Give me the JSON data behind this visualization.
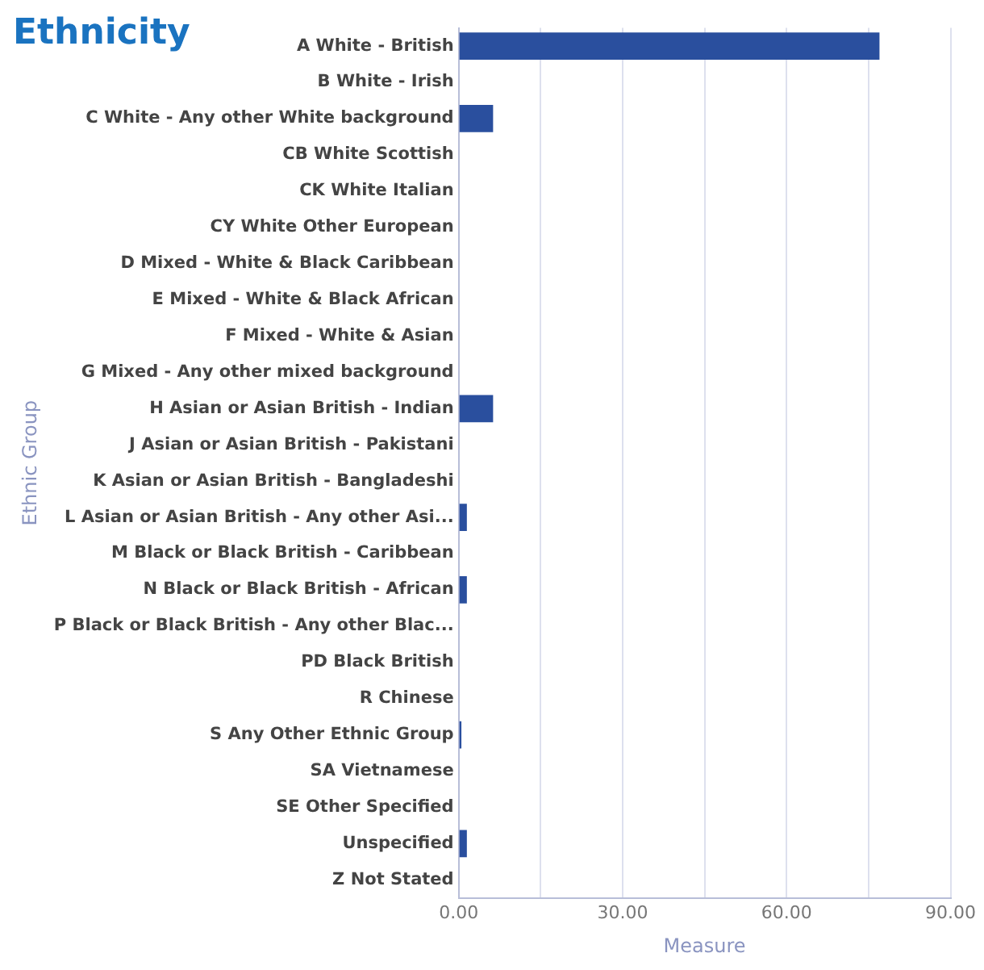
{
  "chart_data": {
    "type": "bar",
    "orientation": "horizontal",
    "title": "Ethnicity",
    "xlabel": "Measure",
    "ylabel": "Ethnic Group",
    "categories": [
      "A White - British",
      "B White - Irish",
      "C White - Any other White background",
      "CB White Scottish",
      "CK White Italian",
      "CY White Other European",
      "D Mixed - White & Black Caribbean",
      "E Mixed - White & Black African",
      "F Mixed - White & Asian",
      "G Mixed - Any other mixed background",
      "H Asian or Asian British - Indian",
      "J Asian or Asian British - Pakistani",
      "K Asian or Asian British - Bangladeshi",
      "L Asian or Asian British - Any other Asi...",
      "M Black or Black British - Caribbean",
      "N Black or Black British - African",
      "P Black or Black British - Any other Blac...",
      "PD Black British",
      "R Chinese",
      "S Any Other Ethnic Group",
      "SA Vietnamese",
      "SE Other Specified",
      "Unspecified",
      "Z Not Stated"
    ],
    "values": [
      77,
      0,
      6.3,
      0,
      0,
      0,
      0,
      0,
      0,
      0,
      6.3,
      0,
      0,
      1.5,
      0,
      1.5,
      0,
      0,
      0,
      0.5,
      0,
      0,
      1.5,
      0
    ],
    "color": "#2a4f9e",
    "xlim": [
      0,
      90
    ],
    "xticks": [
      {
        "value": 0,
        "label": "0.00"
      },
      {
        "value": 15,
        "label": null
      },
      {
        "value": 30,
        "label": "30.00"
      },
      {
        "value": 45,
        "label": null
      },
      {
        "value": 60,
        "label": "60.00"
      },
      {
        "value": 75,
        "label": null
      },
      {
        "value": 90,
        "label": "90.00"
      }
    ],
    "grid": "x"
  }
}
